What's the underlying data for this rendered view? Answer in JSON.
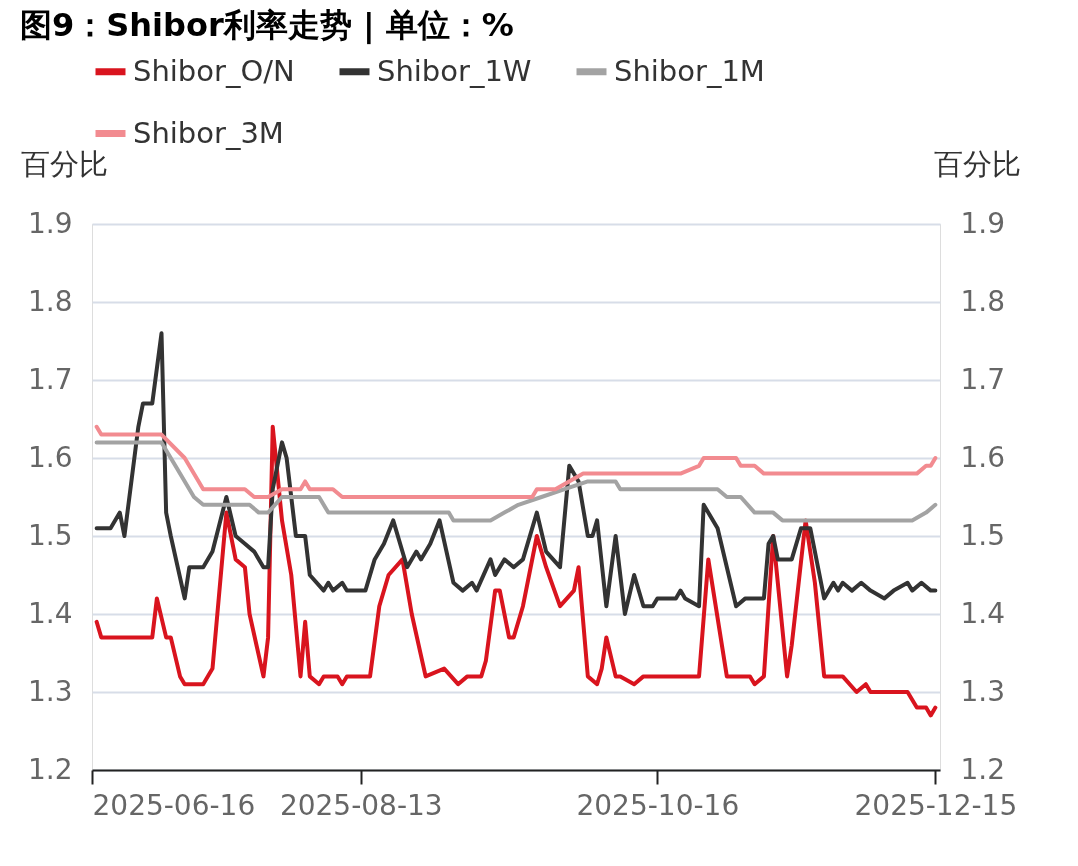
{
  "chart_data": {
    "type": "line",
    "title": "图9：Shibor利率走势 | 单位：%",
    "ylabel": "百分比",
    "y2label": "百分比",
    "xlim": [
      "2025-06-16",
      "2025-12-16"
    ],
    "xticks": [
      "2025-06-16",
      "2025-08-13",
      "2025-10-16",
      "2025-12-15"
    ],
    "ylim": [
      1.2,
      1.9
    ],
    "yticks": [
      1.2,
      1.3,
      1.4,
      1.5,
      1.6,
      1.7,
      1.8,
      1.9
    ],
    "y2lim": [
      1.2,
      1.9
    ],
    "y2ticks": [
      1.2,
      1.3,
      1.4,
      1.5,
      1.6,
      1.7,
      1.8,
      1.9
    ],
    "grid": "y",
    "legend": "top",
    "line_style": "solid",
    "series": [
      {
        "name": "Shibor_O/N",
        "color": "#d9141e",
        "x": [
          "2025-06-17",
          "2025-06-18",
          "2025-06-29",
          "2025-06-30",
          "2025-07-02",
          "2025-07-03",
          "2025-07-05",
          "2025-07-06",
          "2025-07-10",
          "2025-07-12",
          "2025-07-15",
          "2025-07-17",
          "2025-07-19",
          "2025-07-20",
          "2025-07-23",
          "2025-07-24",
          "2025-07-25",
          "2025-07-27",
          "2025-07-29",
          "2025-07-31",
          "2025-08-01",
          "2025-08-02",
          "2025-08-04",
          "2025-08-05",
          "2025-08-08",
          "2025-08-09",
          "2025-08-10",
          "2025-08-15",
          "2025-08-17",
          "2025-08-19",
          "2025-08-22",
          "2025-08-24",
          "2025-08-27",
          "2025-08-31",
          "2025-09-03",
          "2025-09-05",
          "2025-09-08",
          "2025-09-09",
          "2025-09-11",
          "2025-09-12",
          "2025-09-14",
          "2025-09-15",
          "2025-09-17",
          "2025-09-20",
          "2025-09-22",
          "2025-09-25",
          "2025-09-28",
          "2025-09-29",
          "2025-10-01",
          "2025-10-03",
          "2025-10-04",
          "2025-10-05",
          "2025-10-07",
          "2025-10-08",
          "2025-10-11",
          "2025-10-13",
          "2025-10-25",
          "2025-10-27",
          "2025-10-31",
          "2025-11-05",
          "2025-11-06",
          "2025-11-08",
          "2025-11-10",
          "2025-11-13",
          "2025-11-14",
          "2025-11-17",
          "2025-11-19",
          "2025-11-21",
          "2025-11-25",
          "2025-11-28",
          "2025-11-30",
          "2025-12-01",
          "2025-12-09",
          "2025-12-11",
          "2025-12-13",
          "2025-12-14",
          "2025-12-15"
        ],
        "values": [
          1.39,
          1.37,
          1.37,
          1.42,
          1.37,
          1.37,
          1.32,
          1.31,
          1.31,
          1.33,
          1.53,
          1.47,
          1.46,
          1.4,
          1.32,
          1.37,
          1.64,
          1.52,
          1.45,
          1.32,
          1.39,
          1.32,
          1.31,
          1.32,
          1.32,
          1.31,
          1.32,
          1.32,
          1.41,
          1.45,
          1.47,
          1.4,
          1.32,
          1.33,
          1.31,
          1.32,
          1.32,
          1.34,
          1.43,
          1.43,
          1.37,
          1.37,
          1.41,
          1.5,
          1.46,
          1.41,
          1.43,
          1.46,
          1.32,
          1.31,
          1.33,
          1.37,
          1.32,
          1.32,
          1.31,
          1.32,
          1.32,
          1.47,
          1.32,
          1.32,
          1.31,
          1.32,
          1.5,
          1.32,
          1.36,
          1.52,
          1.44,
          1.32,
          1.32,
          1.3,
          1.31,
          1.3,
          1.3,
          1.28,
          1.28,
          1.27,
          1.28
        ]
      },
      {
        "name": "Shibor_1W",
        "color": "#333333",
        "x": [
          "2025-06-17",
          "2025-06-20",
          "2025-06-22",
          "2025-06-23",
          "2025-06-26",
          "2025-06-27",
          "2025-06-29",
          "2025-07-01",
          "2025-07-02",
          "2025-07-03",
          "2025-07-06",
          "2025-07-07",
          "2025-07-10",
          "2025-07-12",
          "2025-07-15",
          "2025-07-17",
          "2025-07-19",
          "2025-07-21",
          "2025-07-23",
          "2025-07-24",
          "2025-07-25",
          "2025-07-27",
          "2025-07-28",
          "2025-07-30",
          "2025-08-01",
          "2025-08-02",
          "2025-08-05",
          "2025-08-06",
          "2025-08-07",
          "2025-08-09",
          "2025-08-10",
          "2025-08-14",
          "2025-08-16",
          "2025-08-18",
          "2025-08-20",
          "2025-08-23",
          "2025-08-25",
          "2025-08-26",
          "2025-08-28",
          "2025-08-30",
          "2025-09-02",
          "2025-09-04",
          "2025-09-06",
          "2025-09-07",
          "2025-09-10",
          "2025-09-11",
          "2025-09-13",
          "2025-09-15",
          "2025-09-17",
          "2025-09-20",
          "2025-09-22",
          "2025-09-25",
          "2025-09-27",
          "2025-09-29",
          "2025-10-01",
          "2025-10-02",
          "2025-10-03",
          "2025-10-05",
          "2025-10-07",
          "2025-10-09",
          "2025-10-11",
          "2025-10-13",
          "2025-10-15",
          "2025-10-16",
          "2025-10-20",
          "2025-10-21",
          "2025-10-22",
          "2025-10-25",
          "2025-10-26",
          "2025-10-29",
          "2025-11-02",
          "2025-11-04",
          "2025-11-08",
          "2025-11-09",
          "2025-11-10",
          "2025-11-11",
          "2025-11-14",
          "2025-11-16",
          "2025-11-18",
          "2025-11-21",
          "2025-11-23",
          "2025-11-24",
          "2025-11-25",
          "2025-11-27",
          "2025-11-29",
          "2025-12-01",
          "2025-12-04",
          "2025-12-06",
          "2025-12-09",
          "2025-12-10",
          "2025-12-12",
          "2025-12-14",
          "2025-12-15"
        ],
        "values": [
          1.51,
          1.51,
          1.53,
          1.5,
          1.64,
          1.67,
          1.67,
          1.76,
          1.53,
          1.5,
          1.42,
          1.46,
          1.46,
          1.48,
          1.55,
          1.5,
          1.49,
          1.48,
          1.46,
          1.46,
          1.56,
          1.62,
          1.6,
          1.5,
          1.5,
          1.45,
          1.43,
          1.44,
          1.43,
          1.44,
          1.43,
          1.43,
          1.47,
          1.49,
          1.52,
          1.46,
          1.48,
          1.47,
          1.49,
          1.52,
          1.44,
          1.43,
          1.44,
          1.43,
          1.47,
          1.45,
          1.47,
          1.46,
          1.47,
          1.53,
          1.48,
          1.46,
          1.59,
          1.57,
          1.5,
          1.5,
          1.52,
          1.41,
          1.5,
          1.4,
          1.45,
          1.41,
          1.41,
          1.42,
          1.42,
          1.43,
          1.42,
          1.41,
          1.54,
          1.51,
          1.41,
          1.42,
          1.42,
          1.49,
          1.5,
          1.47,
          1.47,
          1.51,
          1.51,
          1.42,
          1.44,
          1.43,
          1.44,
          1.43,
          1.44,
          1.43,
          1.42,
          1.43,
          1.44,
          1.43,
          1.44,
          1.43,
          1.43
        ]
      },
      {
        "name": "Shibor_1M",
        "color": "#a3a3a3",
        "x": [
          "2025-06-17",
          "2025-07-01",
          "2025-07-04",
          "2025-07-08",
          "2025-07-10",
          "2025-07-20",
          "2025-07-22",
          "2025-07-24",
          "2025-07-27",
          "2025-08-04",
          "2025-08-06",
          "2025-09-01",
          "2025-09-02",
          "2025-09-10",
          "2025-09-13",
          "2025-09-16",
          "2025-09-21",
          "2025-09-26",
          "2025-10-01",
          "2025-10-07",
          "2025-10-08",
          "2025-10-29",
          "2025-10-31",
          "2025-11-03",
          "2025-11-06",
          "2025-11-10",
          "2025-11-12",
          "2025-12-10",
          "2025-12-13",
          "2025-12-15"
        ],
        "values": [
          1.62,
          1.62,
          1.59,
          1.55,
          1.54,
          1.54,
          1.53,
          1.53,
          1.55,
          1.55,
          1.53,
          1.53,
          1.52,
          1.52,
          1.53,
          1.54,
          1.55,
          1.56,
          1.57,
          1.57,
          1.56,
          1.56,
          1.55,
          1.55,
          1.53,
          1.53,
          1.52,
          1.52,
          1.53,
          1.54
        ]
      },
      {
        "name": "Shibor_3M",
        "color": "#f28b90",
        "x": [
          "2025-06-17",
          "2025-06-18",
          "2025-07-01",
          "2025-07-06",
          "2025-07-10",
          "2025-07-19",
          "2025-07-21",
          "2025-07-24",
          "2025-07-27",
          "2025-07-31",
          "2025-08-01",
          "2025-08-02",
          "2025-08-07",
          "2025-08-09",
          "2025-09-19",
          "2025-09-20",
          "2025-09-24",
          "2025-09-30",
          "2025-10-21",
          "2025-10-25",
          "2025-10-26",
          "2025-11-02",
          "2025-11-03",
          "2025-11-06",
          "2025-11-08",
          "2025-12-11",
          "2025-12-13",
          "2025-12-14",
          "2025-12-15"
        ],
        "values": [
          1.64,
          1.63,
          1.63,
          1.6,
          1.56,
          1.56,
          1.55,
          1.55,
          1.56,
          1.56,
          1.57,
          1.56,
          1.56,
          1.55,
          1.55,
          1.56,
          1.56,
          1.58,
          1.58,
          1.59,
          1.6,
          1.6,
          1.59,
          1.59,
          1.58,
          1.58,
          1.59,
          1.59,
          1.6
        ]
      }
    ]
  }
}
